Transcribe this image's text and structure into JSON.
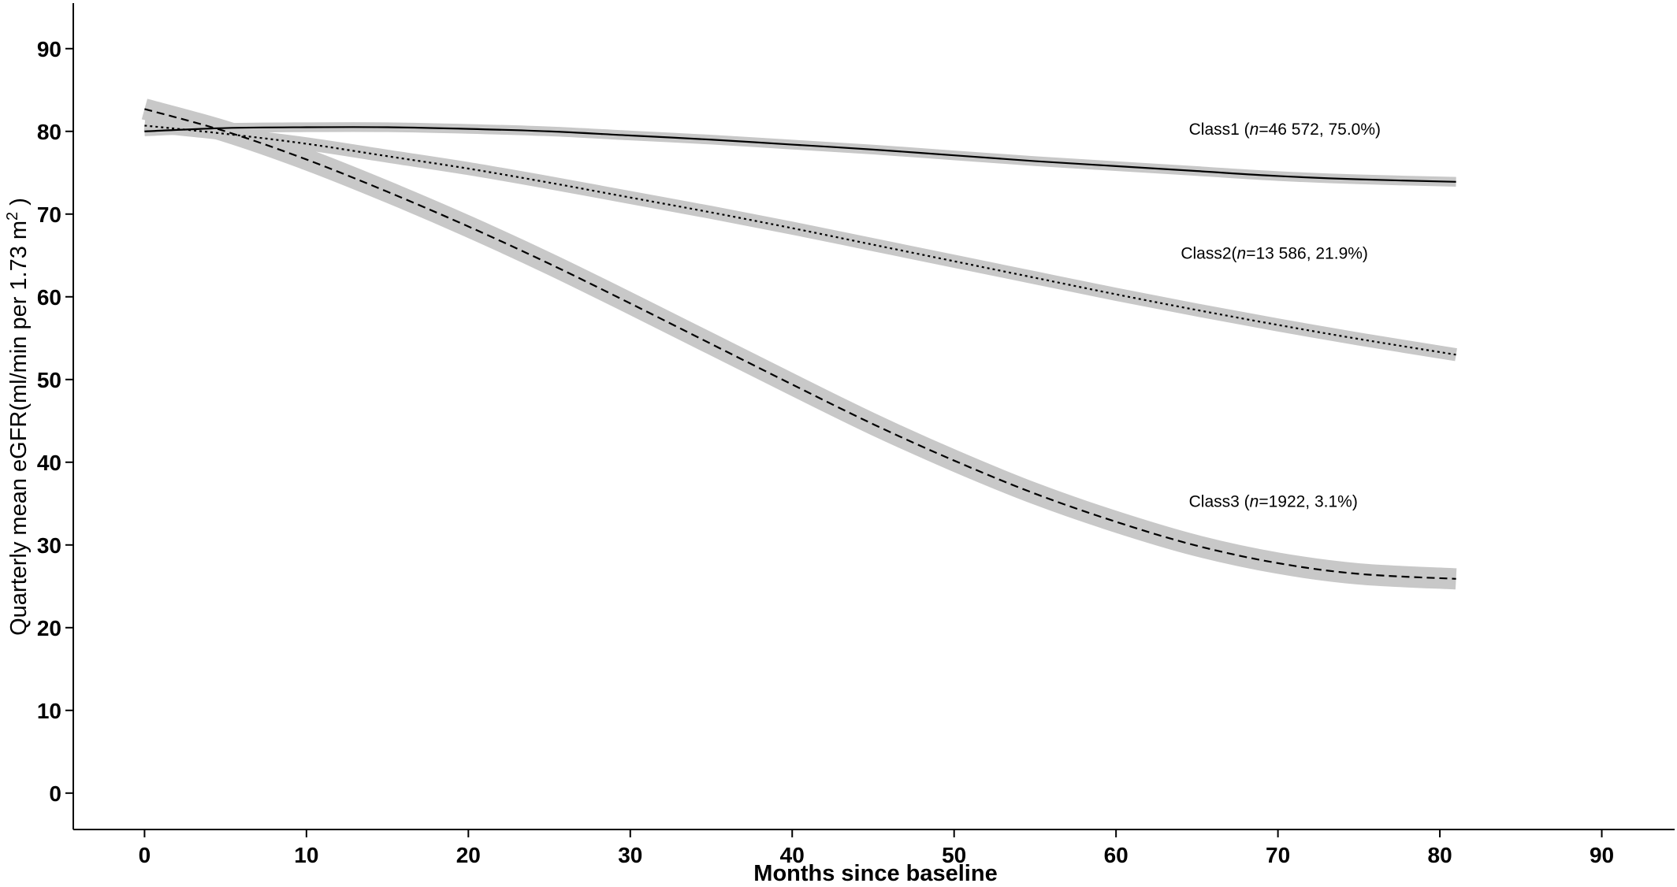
{
  "chart_data": {
    "type": "line",
    "title": "",
    "xlabel": "Months since baseline",
    "ylabel": {
      "main": "Quarterly mean eGFR(ml/min per 1.73 m",
      "superscript": "2",
      "close": " )"
    },
    "xlim": [
      -4.4,
      94.5
    ],
    "ylim": [
      -4.4,
      95.5
    ],
    "xticks": [
      0,
      10,
      20,
      30,
      40,
      50,
      60,
      70,
      80,
      90
    ],
    "yticks": [
      0,
      10,
      20,
      30,
      40,
      50,
      60,
      70,
      80,
      90
    ],
    "grid": false,
    "legend": "none",
    "series": [
      {
        "name": "Class1",
        "label_parts": [
          "Class1 (",
          "n",
          "=46 572, 75.0%)"
        ],
        "label_at": [
          64.5,
          79.6
        ],
        "line_style": "solid",
        "ci_halfwidth": 0.3,
        "x": [
          0,
          5,
          10,
          15,
          20,
          25,
          30,
          35,
          40,
          45,
          50,
          55,
          60,
          65,
          70,
          75,
          81
        ],
        "values": [
          80.0,
          80.4,
          80.5,
          80.5,
          80.3,
          80.0,
          79.5,
          79.0,
          78.4,
          77.8,
          77.1,
          76.4,
          75.8,
          75.2,
          74.6,
          74.2,
          73.9
        ]
      },
      {
        "name": "Class2",
        "label_parts": [
          "Class2(",
          "n",
          "=13 586, 21.9%)"
        ],
        "label_at": [
          64.0,
          64.6
        ],
        "line_style": "dotted",
        "ci_halfwidth": 0.5,
        "x": [
          0,
          5,
          10,
          15,
          20,
          25,
          30,
          35,
          40,
          45,
          50,
          55,
          60,
          65,
          70,
          75,
          81
        ],
        "values": [
          80.7,
          79.7,
          78.5,
          77.0,
          75.5,
          73.8,
          72.0,
          70.2,
          68.3,
          66.3,
          64.3,
          62.3,
          60.3,
          58.4,
          56.6,
          54.9,
          53.0
        ]
      },
      {
        "name": "Class3",
        "label_parts": [
          "Class3 (",
          "n",
          "=1922, 3.1%)"
        ],
        "label_at": [
          64.5,
          34.6
        ],
        "line_style": "dashed",
        "ci_halfwidth": 1.0,
        "x": [
          0,
          5,
          10,
          15,
          20,
          25,
          30,
          35,
          40,
          45,
          50,
          55,
          60,
          65,
          70,
          75,
          81
        ],
        "values": [
          82.7,
          80.0,
          76.6,
          72.7,
          68.5,
          64.0,
          59.2,
          54.3,
          49.4,
          44.6,
          40.2,
          36.2,
          32.8,
          29.9,
          27.8,
          26.5,
          25.9
        ]
      }
    ]
  }
}
